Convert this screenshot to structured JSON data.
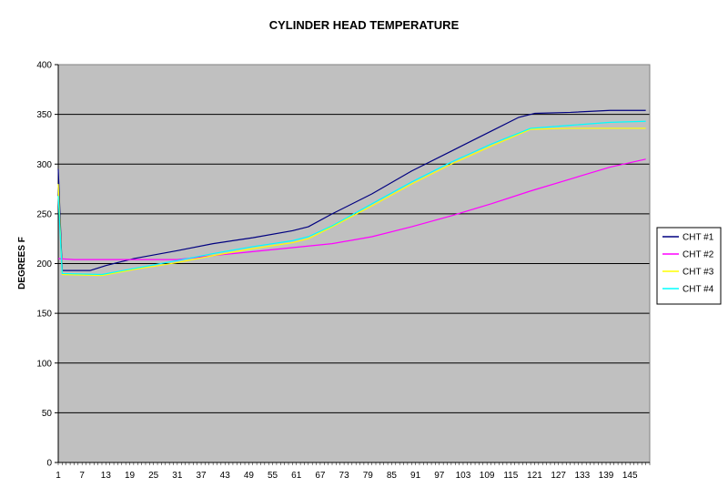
{
  "chart_data": {
    "type": "line",
    "title": "CYLINDER HEAD TEMPERATURE",
    "xlabel": "",
    "ylabel": "DEGREES F",
    "xlim": [
      1,
      150
    ],
    "ylim": [
      0,
      400
    ],
    "y_ticks": [
      0,
      50,
      100,
      150,
      200,
      250,
      300,
      350,
      400
    ],
    "x_tick_labels": [
      1,
      7,
      13,
      19,
      25,
      31,
      37,
      43,
      49,
      55,
      61,
      67,
      73,
      79,
      85,
      91,
      97,
      103,
      109,
      115,
      121,
      127,
      133,
      139,
      145
    ],
    "grid": "horizontal",
    "plot_background": "#c0c0c0",
    "legend_position": "right",
    "series": [
      {
        "name": "CHT #1",
        "color": "#000080",
        "points": [
          [
            1,
            295
          ],
          [
            2,
            193
          ],
          [
            9,
            193
          ],
          [
            13,
            198
          ],
          [
            20,
            205
          ],
          [
            31,
            213
          ],
          [
            40,
            220
          ],
          [
            50,
            226
          ],
          [
            60,
            233
          ],
          [
            64,
            237
          ],
          [
            70,
            250
          ],
          [
            80,
            270
          ],
          [
            90,
            293
          ],
          [
            100,
            313
          ],
          [
            110,
            333
          ],
          [
            117,
            347
          ],
          [
            121,
            351
          ],
          [
            130,
            352
          ],
          [
            140,
            354
          ],
          [
            149,
            354
          ]
        ]
      },
      {
        "name": "CHT #2",
        "color": "#ff00ff",
        "points": [
          [
            1,
            205
          ],
          [
            5,
            204
          ],
          [
            31,
            204
          ],
          [
            40,
            208
          ],
          [
            50,
            212
          ],
          [
            60,
            216
          ],
          [
            70,
            220
          ],
          [
            80,
            227
          ],
          [
            90,
            237
          ],
          [
            100,
            248
          ],
          [
            110,
            260
          ],
          [
            120,
            273
          ],
          [
            130,
            285
          ],
          [
            140,
            297
          ],
          [
            149,
            305
          ]
        ]
      },
      {
        "name": "CHT #3",
        "color": "#ffff00",
        "points": [
          [
            1,
            280
          ],
          [
            2,
            189
          ],
          [
            12,
            188
          ],
          [
            20,
            194
          ],
          [
            31,
            201
          ],
          [
            40,
            208
          ],
          [
            50,
            215
          ],
          [
            60,
            221
          ],
          [
            64,
            225
          ],
          [
            70,
            237
          ],
          [
            80,
            258
          ],
          [
            90,
            280
          ],
          [
            100,
            300
          ],
          [
            110,
            318
          ],
          [
            120,
            335
          ],
          [
            130,
            336
          ],
          [
            140,
            336
          ],
          [
            149,
            336
          ]
        ]
      },
      {
        "name": "CHT #4",
        "color": "#00ffff",
        "points": [
          [
            1,
            268
          ],
          [
            2,
            190
          ],
          [
            12,
            189
          ],
          [
            20,
            195
          ],
          [
            31,
            203
          ],
          [
            40,
            210
          ],
          [
            50,
            217
          ],
          [
            60,
            223
          ],
          [
            64,
            227
          ],
          [
            70,
            238
          ],
          [
            80,
            260
          ],
          [
            90,
            282
          ],
          [
            100,
            302
          ],
          [
            110,
            320
          ],
          [
            120,
            336
          ],
          [
            130,
            339
          ],
          [
            140,
            342
          ],
          [
            149,
            343
          ]
        ]
      }
    ]
  }
}
